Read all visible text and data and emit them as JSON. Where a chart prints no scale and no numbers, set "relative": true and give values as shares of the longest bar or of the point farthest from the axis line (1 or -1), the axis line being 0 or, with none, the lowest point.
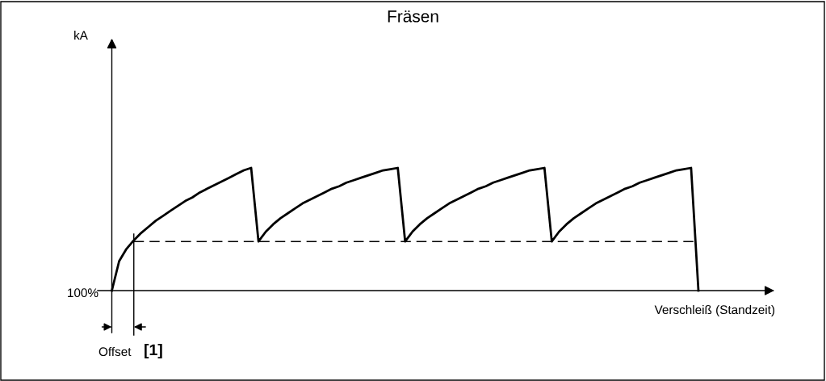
{
  "chart_data": {
    "type": "line",
    "title": "Fräsen",
    "xlabel": "Verschleiß (Standzeit)",
    "relative": true,
    "annotations": [
      "kA",
      "100%",
      "Offset",
      "[1]"
    ],
    "marker": "none",
    "categories": [
      null,
      null,
      null,
      null,
      null,
      null,
      null,
      null,
      null,
      null,
      null,
      null,
      null,
      null,
      null,
      null,
      null,
      null,
      null,
      null,
      null,
      null,
      null,
      null,
      null,
      null,
      null,
      null,
      null,
      null,
      null,
      null,
      null,
      null,
      null,
      null,
      null,
      null,
      null,
      null,
      null,
      null,
      null,
      null,
      null,
      null,
      null,
      null,
      null,
      null,
      null,
      null,
      null,
      null,
      null,
      null,
      null,
      null,
      null,
      null,
      null,
      null,
      null,
      null,
      null,
      null,
      null,
      null,
      null,
      null,
      null,
      null,
      null,
      null,
      null,
      null,
      null,
      null,
      null,
      null,
      null
    ],
    "series": [
      {
        "color": "#000000",
        "line_style": "solid",
        "values": [
          0,
          0.24,
          0.34,
          0.41,
          0.47,
          0.52,
          0.57,
          0.61,
          0.65,
          0.69,
          0.73,
          0.76,
          0.8,
          0.83,
          0.86,
          0.89,
          0.92,
          0.95,
          0.98,
          1,
          0.4,
          0.48,
          0.54,
          0.59,
          0.63,
          0.67,
          0.71,
          0.74,
          0.77,
          0.8,
          0.83,
          0.85,
          0.88,
          0.9,
          0.92,
          0.94,
          0.96,
          0.98,
          0.99,
          1,
          0.4,
          0.48,
          0.54,
          0.59,
          0.63,
          0.67,
          0.71,
          0.74,
          0.77,
          0.8,
          0.83,
          0.85,
          0.88,
          0.9,
          0.92,
          0.94,
          0.96,
          0.98,
          0.99,
          1,
          0.4,
          0.48,
          0.54,
          0.59,
          0.63,
          0.67,
          0.71,
          0.74,
          0.77,
          0.8,
          0.83,
          0.85,
          0.88,
          0.9,
          0.92,
          0.94,
          0.96,
          0.98,
          0.99,
          1,
          0
        ]
      },
      {
        "color": "#000000",
        "line_style": "dashed",
        "values": [
          null,
          null,
          null,
          0.4,
          0.4,
          0.4,
          0.4,
          0.4,
          0.4,
          0.4,
          0.4,
          0.4,
          0.4,
          0.4,
          0.4,
          0.4,
          0.4,
          0.4,
          0.4,
          0.4,
          0.4,
          0.4,
          0.4,
          0.4,
          0.4,
          0.4,
          0.4,
          0.4,
          0.4,
          0.4,
          0.4,
          0.4,
          0.4,
          0.4,
          0.4,
          0.4,
          0.4,
          0.4,
          0.4,
          0.4,
          0.4,
          0.4,
          0.4,
          0.4,
          0.4,
          0.4,
          0.4,
          0.4,
          0.4,
          0.4,
          0.4,
          0.4,
          0.4,
          0.4,
          0.4,
          0.4,
          0.4,
          0.4,
          0.4,
          0.4,
          0.4,
          0.4,
          0.4,
          0.4,
          0.4,
          0.4,
          0.4,
          0.4,
          0.4,
          0.4,
          0.4,
          0.4,
          0.4,
          0.4,
          0.4,
          0.4,
          0.4,
          0.4,
          0.4,
          0.4,
          0.4
        ]
      }
    ]
  }
}
